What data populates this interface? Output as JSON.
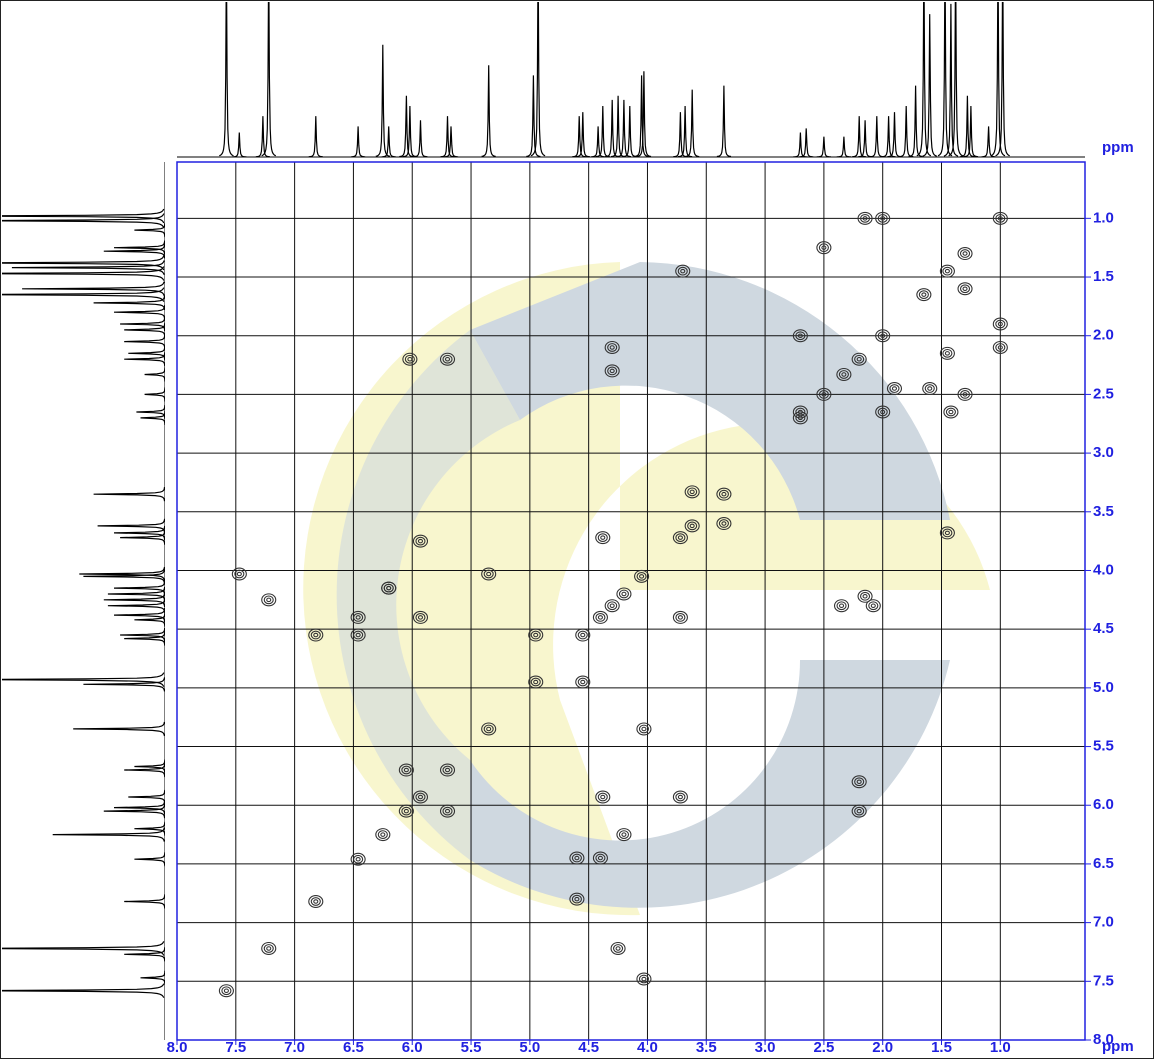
{
  "chart_data": {
    "type": "scatter",
    "x_label": "ppm",
    "y_label": "ppm",
    "xlim": [
      8.0,
      0.28
    ],
    "ylim": [
      0.52,
      8.0
    ],
    "xticks": [
      {
        "value": 8.0,
        "label": "8.0"
      },
      {
        "value": 7.5,
        "label": "7.5"
      },
      {
        "value": 7.0,
        "label": "7.0"
      },
      {
        "value": 6.5,
        "label": "6.5"
      },
      {
        "value": 6.0,
        "label": "6.0"
      },
      {
        "value": 5.5,
        "label": "5.5"
      },
      {
        "value": 5.0,
        "label": "5.0"
      },
      {
        "value": 4.5,
        "label": "4.5"
      },
      {
        "value": 4.0,
        "label": "4.0"
      },
      {
        "value": 3.5,
        "label": "3.5"
      },
      {
        "value": 3.0,
        "label": "3.0"
      },
      {
        "value": 2.5,
        "label": "2.5"
      },
      {
        "value": 2.0,
        "label": "2.0"
      },
      {
        "value": 1.5,
        "label": "1.5"
      },
      {
        "value": 1.0,
        "label": "1.0"
      }
    ],
    "yticks": [
      {
        "value": 1.0,
        "label": "1.0"
      },
      {
        "value": 1.5,
        "label": "1.5"
      },
      {
        "value": 2.0,
        "label": "2.0"
      },
      {
        "value": 2.5,
        "label": "2.5"
      },
      {
        "value": 3.0,
        "label": "3.0"
      },
      {
        "value": 3.5,
        "label": "3.5"
      },
      {
        "value": 4.0,
        "label": "4.0"
      },
      {
        "value": 4.5,
        "label": "4.5"
      },
      {
        "value": 5.0,
        "label": "5.0"
      },
      {
        "value": 5.5,
        "label": "5.5"
      },
      {
        "value": 6.0,
        "label": "6.0"
      },
      {
        "value": 6.5,
        "label": "6.5"
      },
      {
        "value": 7.0,
        "label": "7.0"
      },
      {
        "value": 7.5,
        "label": "7.5"
      },
      {
        "value": 8.0,
        "label": "8.0"
      }
    ],
    "grid": true,
    "color": "#333333",
    "tick_color": "#2020e0",
    "x": [
      7.58,
      7.22,
      6.82,
      6.46,
      6.25,
      6.05,
      5.93,
      5.7,
      5.35,
      4.95,
      4.55,
      4.4,
      4.3,
      4.2,
      4.05,
      3.72,
      3.62,
      3.35,
      2.7,
      2.5,
      2.33,
      2.2,
      2.0,
      1.65,
      1.45,
      1.3,
      1.0,
      7.22,
      4.25,
      6.2,
      4.2,
      6.05,
      5.7,
      7.47,
      6.82,
      6.46,
      6.46,
      6.2,
      6.02,
      5.93,
      5.93,
      5.7,
      5.35,
      4.95,
      4.55,
      4.38,
      4.38,
      4.3,
      4.3,
      4.03,
      4.03,
      3.72,
      3.72,
      3.62,
      3.35,
      3.7,
      2.7,
      2.7,
      2.5,
      2.35,
      2.15,
      2.08,
      2.2,
      2.2,
      2.0,
      2.15,
      2.0,
      1.45,
      1.45,
      1.3,
      1.3,
      1.0,
      1.0,
      1.42,
      4.6,
      4.4,
      4.6,
      1.6,
      1.9
    ],
    "values": [
      7.58,
      7.22,
      6.82,
      6.46,
      6.25,
      6.05,
      5.93,
      5.7,
      5.35,
      4.95,
      4.55,
      4.4,
      4.3,
      4.2,
      4.05,
      3.72,
      3.62,
      3.35,
      2.7,
      2.5,
      2.33,
      2.2,
      2.0,
      1.65,
      1.45,
      1.3,
      1.0,
      4.25,
      7.22,
      4.15,
      6.25,
      5.7,
      6.05,
      4.03,
      4.55,
      4.4,
      4.55,
      4.15,
      2.2,
      4.4,
      3.75,
      2.2,
      4.03,
      4.55,
      4.95,
      3.72,
      5.93,
      2.1,
      2.3,
      5.35,
      7.48,
      4.4,
      5.93,
      3.33,
      3.6,
      1.45,
      2.0,
      2.65,
      1.25,
      4.3,
      4.22,
      4.3,
      5.8,
      6.05,
      2.65,
      1.0,
      1.0,
      3.68,
      2.15,
      1.6,
      2.5,
      1.9,
      2.1,
      2.65,
      6.45,
      6.45,
      6.8,
      2.45,
      2.45
    ],
    "projection": {
      "x": [
        7.58,
        7.47,
        7.27,
        7.22,
        6.82,
        6.46,
        6.25,
        6.2,
        6.05,
        6.02,
        5.93,
        5.7,
        5.67,
        5.35,
        4.97,
        4.93,
        4.58,
        4.55,
        4.42,
        4.38,
        4.3,
        4.25,
        4.2,
        4.15,
        4.05,
        4.03,
        3.72,
        3.68,
        3.62,
        3.35,
        2.7,
        2.65,
        2.5,
        2.33,
        2.2,
        2.15,
        2.05,
        1.95,
        1.9,
        1.8,
        1.72,
        1.65,
        1.6,
        1.47,
        1.42,
        1.38,
        1.28,
        1.25,
        1.1,
        1.02,
        0.98
      ],
      "values": [
        100,
        12,
        20,
        100,
        20,
        15,
        55,
        15,
        30,
        25,
        18,
        20,
        15,
        45,
        40,
        100,
        20,
        22,
        15,
        25,
        28,
        30,
        28,
        25,
        40,
        42,
        22,
        25,
        33,
        35,
        12,
        14,
        10,
        10,
        20,
        18,
        20,
        20,
        22,
        25,
        35,
        100,
        70,
        100,
        75,
        100,
        30,
        25,
        15,
        100,
        100
      ]
    }
  }
}
